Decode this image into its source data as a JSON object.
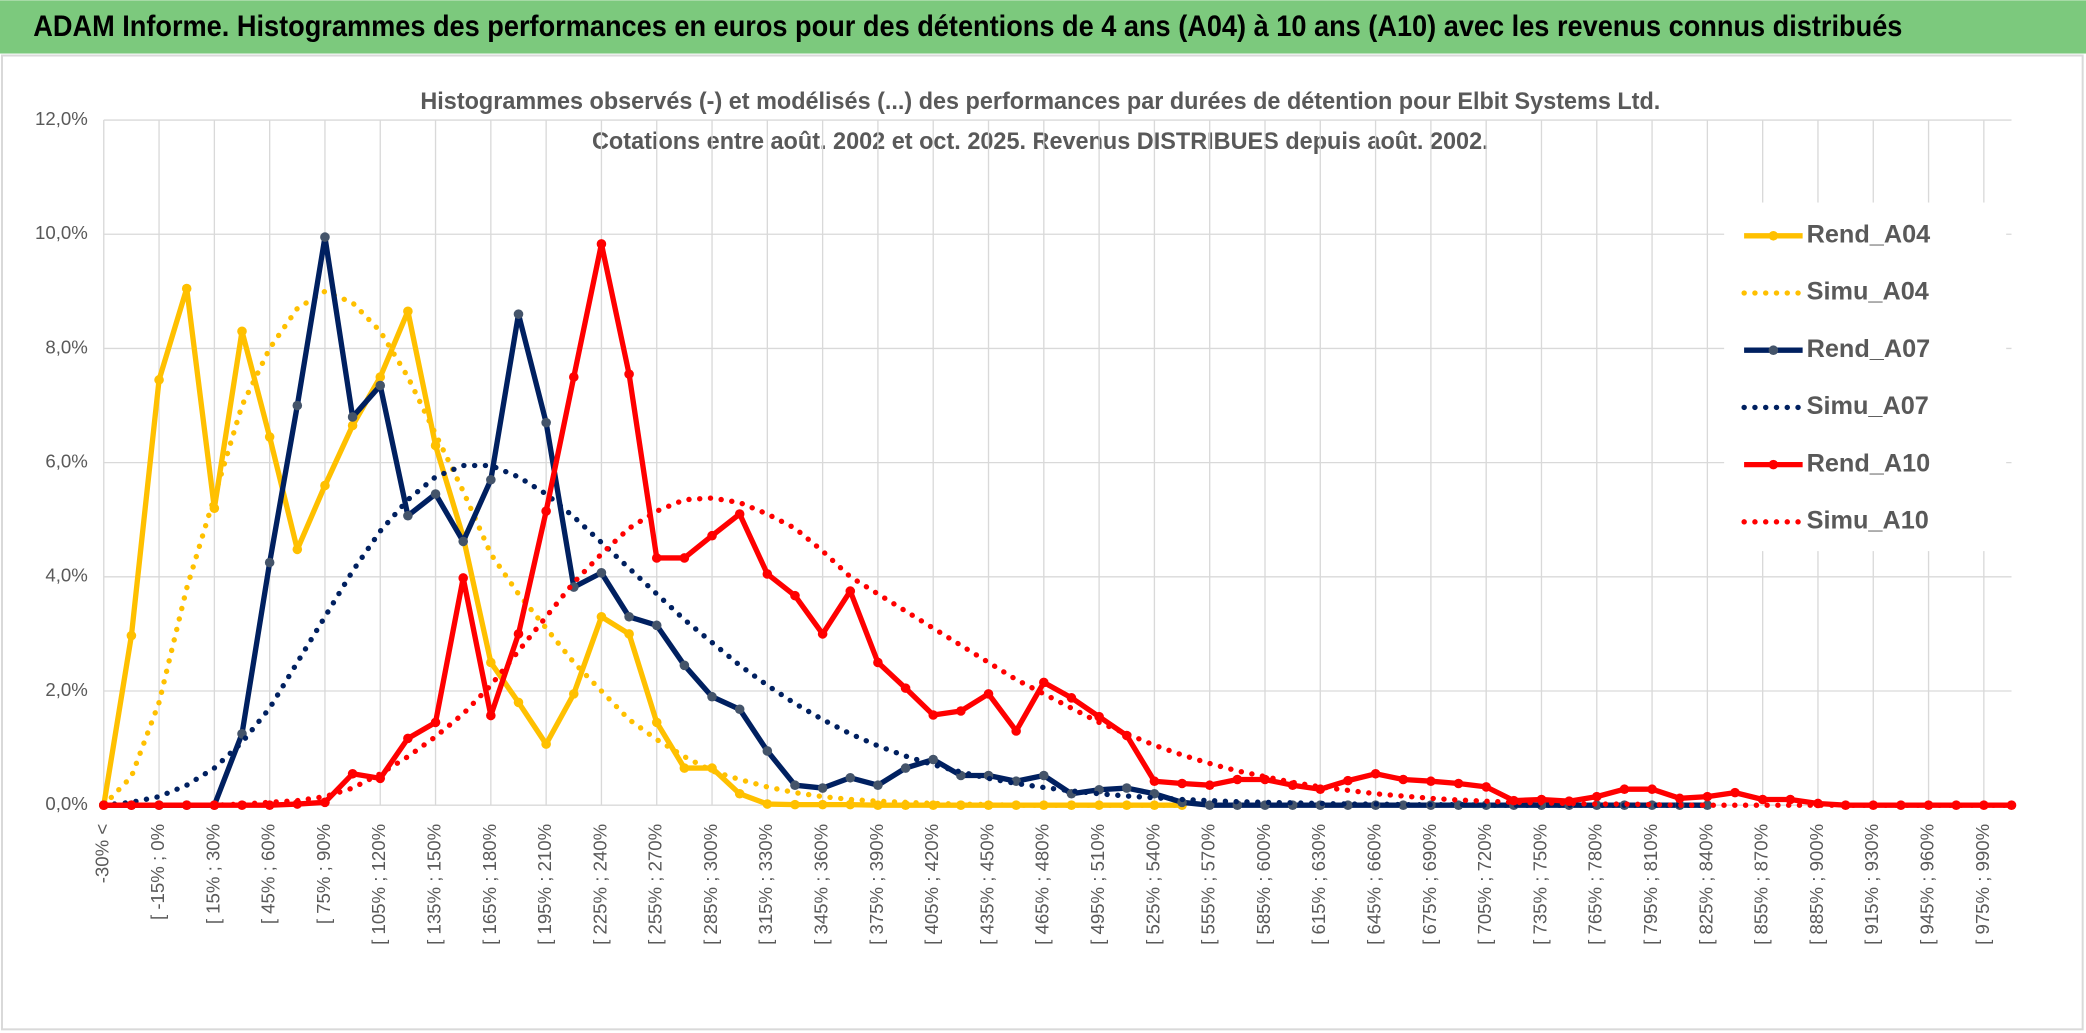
{
  "header": {
    "title": "ADAM Informe. Histogrammes des performances en euros pour des détentions de 4 ans (A04) à 10 ans (A10) avec les revenus connus distribués"
  },
  "chart_data": {
    "type": "line",
    "title": "Histogrammes observés (-) et modélisés (...) des performances par durées de détention pour Elbit Systems Ltd.",
    "subtitle": "Cotations entre août. 2002 et oct. 2025. Revenus DISTRIBUES depuis août. 2002.",
    "categories": [
      "-30% <",
      null,
      "[ -15% ; 0%",
      null,
      "[ 15% ; 30%",
      null,
      "[ 45% ; 60%",
      null,
      "[ 75% ; 90%",
      null,
      "[ 105% ; 120%",
      null,
      "[ 135% ; 150%",
      null,
      "[ 165% ; 180%",
      null,
      "[ 195% ; 210%",
      null,
      "[ 225% ; 240%",
      null,
      "[ 255% ; 270%",
      null,
      "[ 285% ; 300%",
      null,
      "[ 315% ; 330%",
      null,
      "[ 345% ; 360%",
      null,
      "[ 375% ; 390%",
      null,
      "[ 405% ; 420%",
      null,
      "[ 435% ; 450%",
      null,
      "[ 465% ; 480%",
      null,
      "[ 495% ; 510%",
      null,
      "[ 525% ; 540%",
      null,
      "[ 555% ; 570%",
      null,
      "[ 585% ; 600%",
      null,
      "[ 615% ; 630%",
      null,
      "[ 645% ; 660%",
      null,
      "[ 675% ; 690%",
      null,
      "[ 705% ; 720%",
      null,
      "[ 735% ; 750%",
      null,
      "[ 765% ; 780%",
      null,
      "[ 795% ; 810%",
      null,
      "[ 825% ; 840%",
      null,
      "[ 855% ; 870%",
      null,
      "[ 885% ; 900%",
      null,
      "[ 915% ; 930%",
      null,
      "[ 945% ; 960%",
      null,
      "[ 975% ; 990%",
      null
    ],
    "ylim": [
      0,
      12
    ],
    "yticks": [
      {
        "value": 0,
        "label": "0,0%"
      },
      {
        "value": 2,
        "label": "2,0%"
      },
      {
        "value": 4,
        "label": "4,0%"
      },
      {
        "value": 6,
        "label": "6,0%"
      },
      {
        "value": 8,
        "label": "8,0%"
      },
      {
        "value": 10,
        "label": "10,0%"
      },
      {
        "value": 12,
        "label": "12,0%"
      }
    ],
    "grid": true,
    "legend": "right",
    "series": [
      {
        "name": "Rend_A04",
        "color": "#ffc000",
        "style": "solid",
        "markers": true,
        "values": [
          0,
          2.97,
          7.45,
          9.05,
          5.2,
          8.3,
          6.45,
          4.48,
          5.6,
          6.65,
          7.5,
          8.65,
          6.3,
          4.7,
          2.5,
          1.8,
          1.07,
          1.95,
          3.3,
          3.0,
          1.45,
          0.65,
          0.65,
          0.2,
          0.02,
          0.01,
          0.01,
          0.01,
          0,
          0,
          0,
          0,
          0,
          0,
          0,
          0,
          0,
          0,
          0,
          0,
          null,
          null,
          null,
          null,
          null,
          null,
          null,
          null,
          null,
          null,
          null,
          null,
          null,
          null,
          null,
          null,
          null,
          null,
          null,
          null,
          null,
          null,
          null,
          null,
          null,
          null,
          null,
          null,
          null,
          null
        ]
      },
      {
        "name": "Simu_A04",
        "color": "#ffc000",
        "style": "dotted",
        "markers": false,
        "values": [
          0,
          0.5,
          1.8,
          3.8,
          5.4,
          7.0,
          8.0,
          8.7,
          9.0,
          8.8,
          8.3,
          7.5,
          6.5,
          5.5,
          4.4,
          3.7,
          3.1,
          2.5,
          2.0,
          1.5,
          1.15,
          0.85,
          0.6,
          0.45,
          0.32,
          0.22,
          0.15,
          0.1,
          0.07,
          0.05,
          0.03,
          0.02,
          0.01,
          0,
          0,
          0,
          0,
          0,
          0,
          0,
          null,
          null,
          null,
          null,
          null,
          null,
          null,
          null,
          null,
          null,
          null,
          null,
          null,
          null,
          null,
          null,
          null,
          null,
          null,
          null,
          null,
          null,
          null,
          null,
          null,
          null,
          null,
          null,
          null,
          null
        ]
      },
      {
        "name": "Rend_A07",
        "color": "#002060",
        "style": "solid",
        "markers": true,
        "values": [
          0,
          0,
          0,
          0,
          0,
          1.25,
          4.25,
          7.0,
          9.95,
          6.8,
          7.35,
          5.07,
          5.45,
          4.62,
          5.7,
          8.6,
          6.7,
          3.82,
          4.07,
          3.3,
          3.15,
          2.45,
          1.9,
          1.68,
          0.95,
          0.35,
          0.3,
          0.48,
          0.35,
          0.65,
          0.8,
          0.52,
          0.52,
          0.42,
          0.52,
          0.2,
          0.27,
          0.3,
          0.2,
          0.05,
          0,
          0,
          0,
          0,
          0,
          0,
          0,
          0,
          0,
          0,
          0,
          0,
          0,
          0,
          0,
          0,
          0,
          0,
          0,
          null,
          null,
          null,
          null,
          null,
          null,
          null,
          null,
          null,
          null,
          null
        ]
      },
      {
        "name": "Simu_A07",
        "color": "#002060",
        "style": "dotted",
        "markers": false,
        "values": [
          0,
          0.05,
          0.15,
          0.35,
          0.65,
          1.1,
          1.7,
          2.5,
          3.3,
          4.1,
          4.8,
          5.35,
          5.75,
          5.95,
          5.95,
          5.75,
          5.45,
          5.05,
          4.6,
          4.15,
          3.7,
          3.25,
          2.85,
          2.45,
          2.1,
          1.78,
          1.5,
          1.25,
          1.04,
          0.86,
          0.71,
          0.58,
          0.47,
          0.38,
          0.31,
          0.25,
          0.2,
          0.16,
          0.13,
          0.1,
          0.08,
          0.06,
          0.05,
          0.04,
          0.03,
          0.02,
          0.02,
          0.01,
          0.01,
          0.01,
          0,
          0,
          0,
          0,
          0,
          0,
          0,
          0,
          0,
          null,
          null,
          null,
          null,
          null,
          null,
          null,
          null,
          null,
          null,
          null
        ]
      },
      {
        "name": "Rend_A10",
        "color": "#ff0000",
        "style": "solid",
        "markers": true,
        "values": [
          0,
          0,
          0,
          0,
          0,
          0,
          0,
          0.02,
          0.05,
          0.55,
          0.47,
          1.17,
          1.45,
          3.98,
          1.57,
          3.0,
          5.15,
          7.5,
          9.83,
          7.55,
          4.33,
          4.33,
          4.72,
          5.1,
          4.05,
          3.67,
          3.0,
          3.75,
          2.5,
          2.05,
          1.58,
          1.65,
          1.95,
          1.3,
          2.15,
          1.88,
          1.55,
          1.22,
          0.42,
          0.38,
          0.35,
          0.45,
          0.45,
          0.35,
          0.28,
          0.43,
          0.55,
          0.45,
          0.42,
          0.38,
          0.32,
          0.08,
          0.1,
          0.07,
          0.15,
          0.28,
          0.28,
          0.12,
          0.15,
          0.22,
          0.1,
          0.1,
          0.03,
          0,
          0,
          0,
          0,
          0,
          0,
          0
        ]
      },
      {
        "name": "Simu_A10",
        "color": "#ff0000",
        "style": "dotted",
        "markers": false,
        "values": [
          0,
          0,
          0,
          0,
          0,
          0.02,
          0.05,
          0.08,
          0.15,
          0.3,
          0.55,
          0.85,
          1.2,
          1.6,
          2.1,
          2.7,
          3.3,
          3.9,
          4.4,
          4.85,
          5.15,
          5.35,
          5.38,
          5.3,
          5.1,
          4.85,
          4.45,
          4.0,
          3.7,
          3.4,
          3.1,
          2.8,
          2.5,
          2.2,
          1.95,
          1.7,
          1.45,
          1.25,
          1.05,
          0.88,
          0.73,
          0.6,
          0.5,
          0.4,
          0.32,
          0.26,
          0.2,
          0.16,
          0.12,
          0.09,
          0.07,
          0.05,
          0.04,
          0.03,
          0.02,
          0.02,
          0.01,
          0,
          0,
          0,
          0,
          0,
          0,
          0,
          0,
          0,
          0,
          0,
          0,
          0
        ]
      }
    ]
  }
}
